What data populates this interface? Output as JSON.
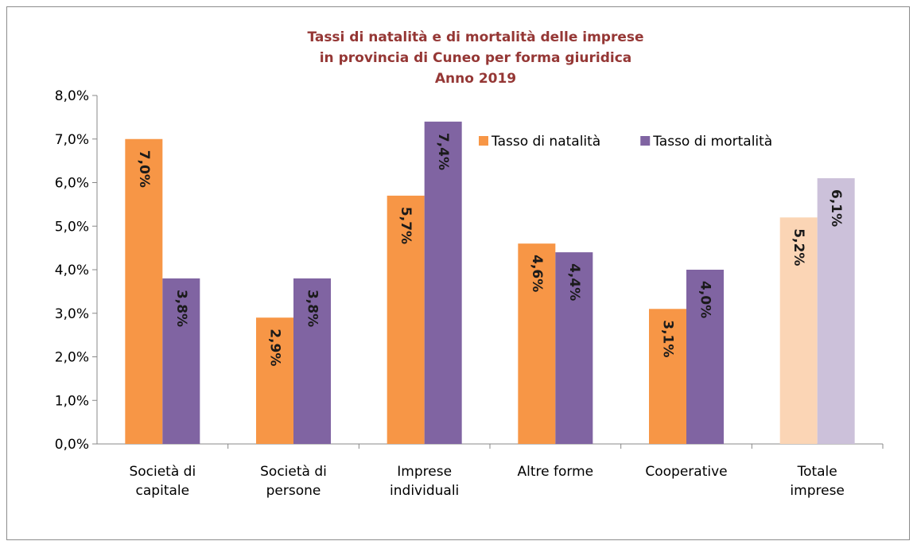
{
  "chart_data": {
    "type": "bar",
    "title": [
      "Tassi di natalità e di mortalità delle imprese",
      "in provincia di Cuneo per forma giuridica",
      "Anno 2019"
    ],
    "categories": [
      "Società di\ncapitale",
      "Società di\npersone",
      "Imprese\nindividuali",
      "Altre forme",
      "Cooperative",
      "Totale\nimprese"
    ],
    "series": [
      {
        "name": "Tasso di natalità",
        "color": "#f79646",
        "colors": [
          "#f79646",
          "#f79646",
          "#f79646",
          "#f79646",
          "#f79646",
          "#fbd5b5"
        ],
        "values": [
          7.0,
          2.9,
          5.7,
          4.6,
          3.1,
          5.2
        ],
        "value_labels": [
          "7,0%",
          "2,9%",
          "5,7%",
          "4,6%",
          "3,1%",
          "5,2%"
        ]
      },
      {
        "name": "Tasso di mortalità",
        "color": "#8064a2",
        "colors": [
          "#8064a2",
          "#8064a2",
          "#8064a2",
          "#8064a2",
          "#8064a2",
          "#ccc1da"
        ],
        "values": [
          3.8,
          3.8,
          7.4,
          4.4,
          4.0,
          6.1
        ],
        "value_labels": [
          "3,8%",
          "3,8%",
          "7,4%",
          "4,4%",
          "4,0%",
          "6,1%"
        ]
      }
    ],
    "ylim": [
      0,
      8
    ],
    "yticks": [
      {
        "value": 0,
        "label": "0,0%"
      },
      {
        "value": 1,
        "label": "1,0%"
      },
      {
        "value": 2,
        "label": "2,0%"
      },
      {
        "value": 3,
        "label": "3,0%"
      },
      {
        "value": 4,
        "label": "4,0%"
      },
      {
        "value": 5,
        "label": "5,0%"
      },
      {
        "value": 6,
        "label": "6,0%"
      },
      {
        "value": 7,
        "label": "7,0%"
      },
      {
        "value": 8,
        "label": "8,0%"
      }
    ],
    "legend": "top-right",
    "grid": false
  }
}
